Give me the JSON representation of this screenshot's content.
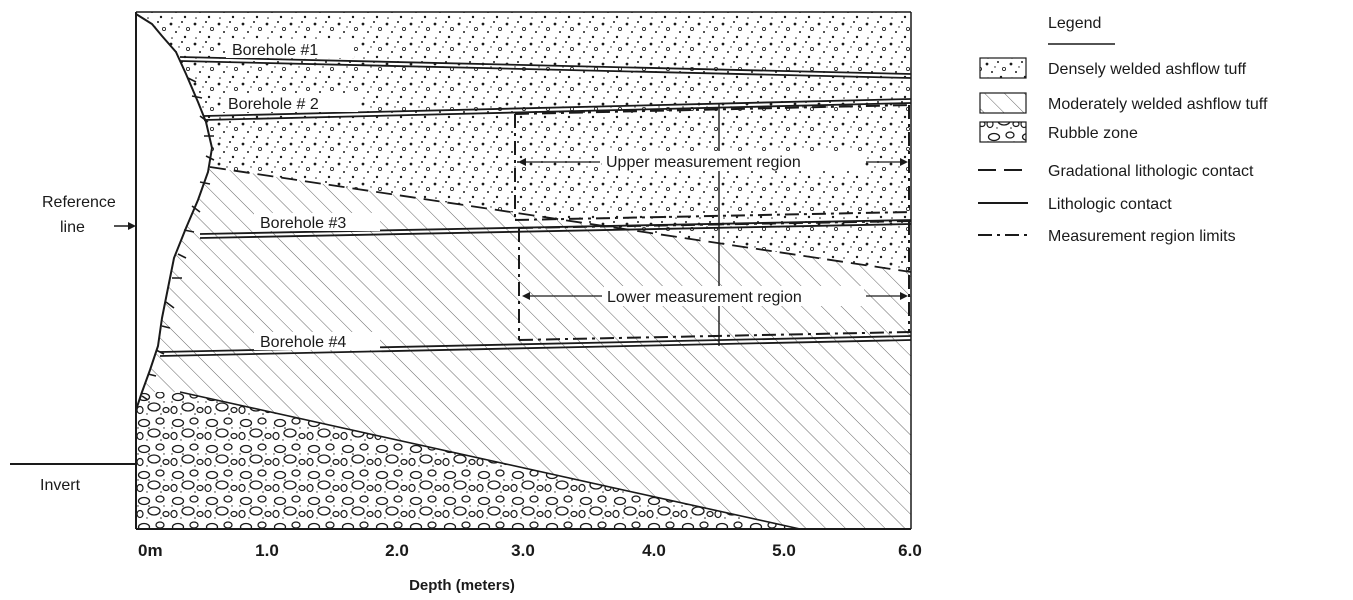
{
  "diagram": {
    "reference_label_line1": "Reference",
    "reference_label_line2": "line",
    "invert_label": "Invert",
    "x_axis_title": "Depth (meters)",
    "x_ticks": [
      "0m",
      "1.0",
      "2.0",
      "3.0",
      "4.0",
      "5.0",
      "6.0"
    ],
    "boreholes": [
      {
        "label": "Borehole #1"
      },
      {
        "label": "Borehole # 2"
      },
      {
        "label": "Borehole #3"
      },
      {
        "label": "Borehole #4"
      }
    ],
    "upper_region_label": "Upper measurement region",
    "lower_region_label": "Lower measurement region"
  },
  "legend": {
    "title": "Legend",
    "items": [
      {
        "label": "Densely welded ashflow tuff",
        "symbol": "dots-swatch"
      },
      {
        "label": "Moderately welded ashflow tuff",
        "symbol": "hatch-swatch"
      },
      {
        "label": "Rubble zone",
        "symbol": "rubble-swatch"
      },
      {
        "label": "Gradational lithologic contact",
        "symbol": "dashed-line"
      },
      {
        "label": "Lithologic contact",
        "symbol": "solid-line"
      },
      {
        "label": "Measurement region limits",
        "symbol": "dash-dot-line"
      }
    ]
  },
  "colors": {
    "ink": "#1a1a1a",
    "paper": "#ffffff"
  }
}
